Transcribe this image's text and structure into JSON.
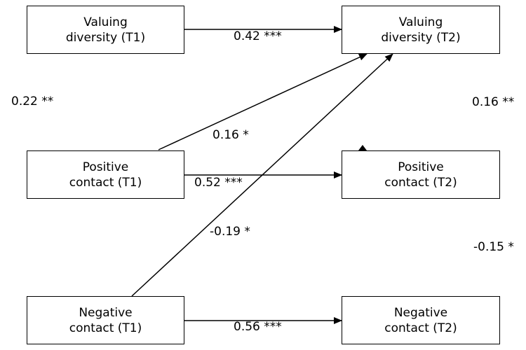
{
  "nodes": {
    "vd1": {
      "line1": "Valuing",
      "line2": "diversity (T1)"
    },
    "vd2": {
      "line1": "Valuing",
      "line2": "diversity (T2)"
    },
    "pc1": {
      "line1": "Positive",
      "line2": "contact (T1)"
    },
    "pc2": {
      "line1": "Positive",
      "line2": "contact (T2)"
    },
    "nc1": {
      "line1": "Negative",
      "line2": "contact (T1)"
    },
    "nc2": {
      "line1": "Negative",
      "line2": "contact (T2)"
    }
  },
  "paths": {
    "vd1_vd2": "0.42 ***",
    "pc1_vd2": "0.16 *",
    "pc1_pc2": "0.52 ***",
    "nc1_vd2": "-0.19 *",
    "nc1_nc2": "0.56 ***"
  },
  "correlations": {
    "t1_vd_pc": "0.22 **",
    "t2_vd_pc": "0.16 **",
    "t2_pc_nc": "-0.15 *"
  }
}
